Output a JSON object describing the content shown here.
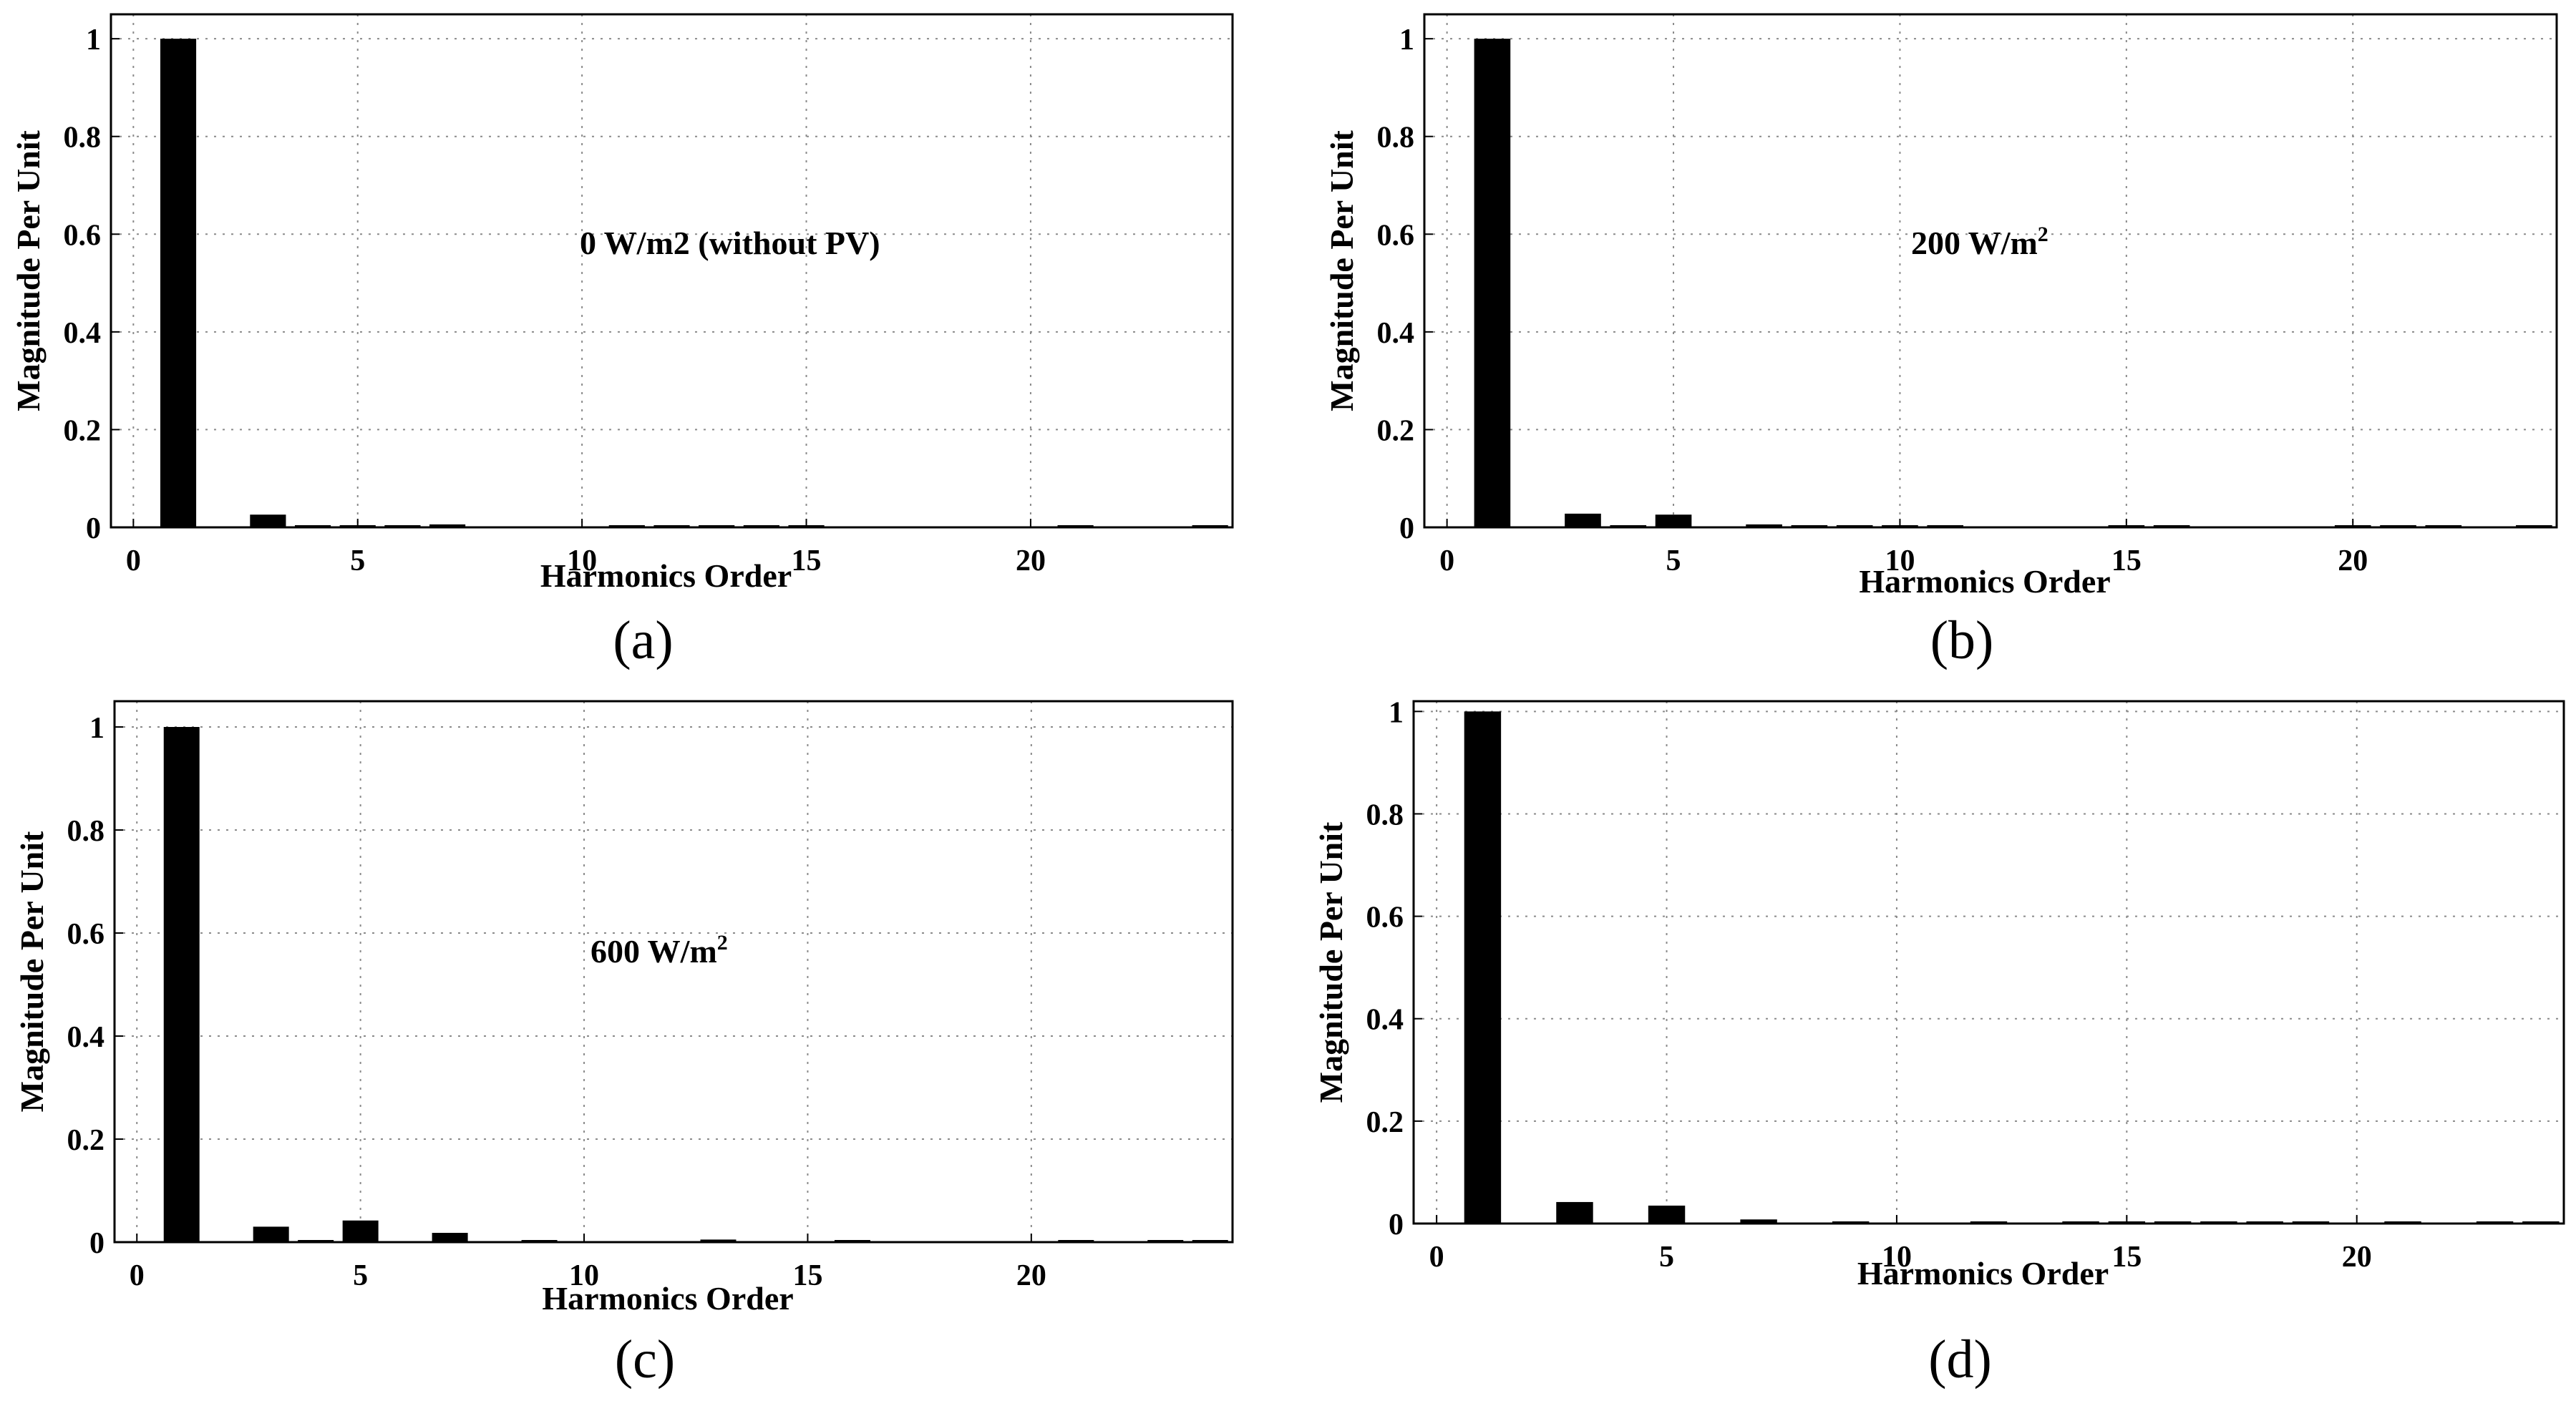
{
  "chart_data": [
    {
      "type": "bar",
      "panel_label": "(a)",
      "annotation": "0 W/m2 (without PV)",
      "annotation_sup": "",
      "xlabel": "Harmonics Order",
      "ylabel": "Magnitude Per Unit",
      "xlim": [
        -0.5,
        24.5
      ],
      "ylim": [
        0,
        1.05
      ],
      "xticks": [
        0,
        5,
        10,
        15,
        20
      ],
      "yticks": [
        0,
        0.2,
        0.4,
        0.6,
        0.8,
        1
      ],
      "ytick_labels": [
        "0",
        "0.2",
        "0.4",
        "0.6",
        "0.8",
        "1"
      ],
      "grid": true,
      "x": [
        1,
        3,
        4,
        5,
        6,
        7,
        11,
        12,
        13,
        14,
        15,
        21,
        24
      ],
      "values": [
        1.0,
        0.026,
        0.002,
        0.003,
        0.002,
        0.006,
        0.004,
        0.002,
        0.003,
        0.002,
        0.002,
        0.003,
        0.002
      ]
    },
    {
      "type": "bar",
      "panel_label": "(b)",
      "annotation": "200 W/m",
      "annotation_sup": "2",
      "xlabel": "Harmonics Order",
      "ylabel": "Magnitude Per Unit",
      "xlim": [
        -0.5,
        24.5
      ],
      "ylim": [
        0,
        1.05
      ],
      "xticks": [
        0,
        5,
        10,
        15,
        20
      ],
      "yticks": [
        0,
        0.2,
        0.4,
        0.6,
        0.8,
        1
      ],
      "ytick_labels": [
        "0",
        "0.2",
        "0.4",
        "0.6",
        "0.8",
        "1"
      ],
      "grid": true,
      "x": [
        1,
        3,
        4,
        5,
        7,
        8,
        9,
        10,
        11,
        15,
        16,
        20,
        21,
        22,
        24
      ],
      "values": [
        1.0,
        0.028,
        0.004,
        0.026,
        0.006,
        0.003,
        0.003,
        0.003,
        0.003,
        0.004,
        0.003,
        0.003,
        0.004,
        0.003,
        0.004
      ]
    },
    {
      "type": "bar",
      "panel_label": "(c)",
      "annotation": "600 W/m",
      "annotation_sup": "2",
      "xlabel": "Harmonics Order",
      "ylabel": "Magnitude Per Unit",
      "xlim": [
        -0.5,
        24.5
      ],
      "ylim": [
        0,
        1.05
      ],
      "xticks": [
        0,
        5,
        10,
        15,
        20
      ],
      "yticks": [
        0,
        0.2,
        0.4,
        0.6,
        0.8,
        1
      ],
      "ytick_labels": [
        "0",
        "0.2",
        "0.4",
        "0.6",
        "0.8",
        "1"
      ],
      "grid": true,
      "x": [
        1,
        3,
        4,
        5,
        7,
        9,
        13,
        16,
        21,
        23,
        24
      ],
      "values": [
        1.0,
        0.03,
        0.004,
        0.042,
        0.018,
        0.002,
        0.005,
        0.003,
        0.003,
        0.002,
        0.002
      ]
    },
    {
      "type": "bar",
      "panel_label": "(d)",
      "annotation": "",
      "annotation_sup": "",
      "xlabel": "Harmonics Order",
      "ylabel": "Magnitude Per Unit",
      "xlim": [
        -0.5,
        24.5
      ],
      "ylim": [
        0,
        1.02
      ],
      "xticks": [
        0,
        5,
        10,
        15,
        20
      ],
      "yticks": [
        0,
        0.2,
        0.4,
        0.6,
        0.8,
        1
      ],
      "ytick_labels": [
        "0",
        "0.2",
        "0.4",
        "0.6",
        "0.8",
        "1"
      ],
      "grid": true,
      "x": [
        1,
        3,
        5,
        7,
        9,
        12,
        14,
        15,
        16,
        17,
        18,
        19,
        21,
        23,
        24
      ],
      "values": [
        1.0,
        0.042,
        0.035,
        0.008,
        0.002,
        0.002,
        0.002,
        0.002,
        0.002,
        0.002,
        0.002,
        0.002,
        0.004,
        0.002,
        0.002
      ]
    }
  ]
}
